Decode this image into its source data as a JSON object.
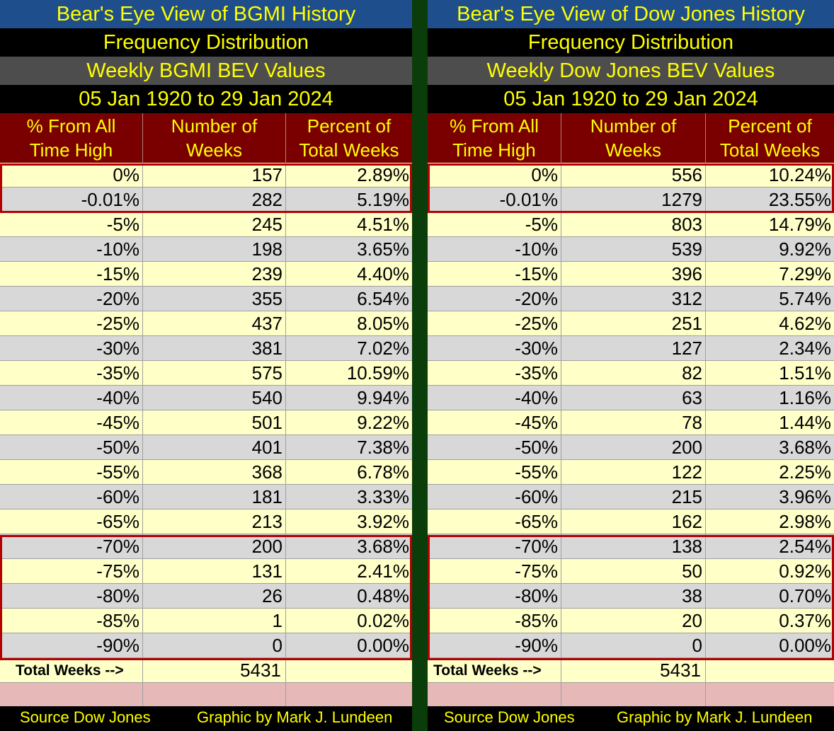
{
  "left": {
    "title": "Bear's Eye View of BGMI History",
    "subtitle": "Frequency Distribution",
    "series_title": "Weekly BGMI BEV Values",
    "date_range": "05 Jan 1920 to 29 Jan 2024",
    "columns": [
      "% From All Time High",
      "Number of Weeks",
      "Percent of Total Weeks"
    ],
    "column_lines": [
      [
        "% From All",
        "Time High"
      ],
      [
        "Number of",
        "Weeks"
      ],
      [
        "Percent of",
        "Total Weeks"
      ]
    ],
    "rows": [
      {
        "pct_from_ath": "0%",
        "weeks": "157",
        "percent": "2.89%"
      },
      {
        "pct_from_ath": "-0.01%",
        "weeks": "282",
        "percent": "5.19%"
      },
      {
        "pct_from_ath": "-5%",
        "weeks": "245",
        "percent": "4.51%"
      },
      {
        "pct_from_ath": "-10%",
        "weeks": "198",
        "percent": "3.65%"
      },
      {
        "pct_from_ath": "-15%",
        "weeks": "239",
        "percent": "4.40%"
      },
      {
        "pct_from_ath": "-20%",
        "weeks": "355",
        "percent": "6.54%"
      },
      {
        "pct_from_ath": "-25%",
        "weeks": "437",
        "percent": "8.05%"
      },
      {
        "pct_from_ath": "-30%",
        "weeks": "381",
        "percent": "7.02%"
      },
      {
        "pct_from_ath": "-35%",
        "weeks": "575",
        "percent": "10.59%"
      },
      {
        "pct_from_ath": "-40%",
        "weeks": "540",
        "percent": "9.94%"
      },
      {
        "pct_from_ath": "-45%",
        "weeks": "501",
        "percent": "9.22%"
      },
      {
        "pct_from_ath": "-50%",
        "weeks": "401",
        "percent": "7.38%"
      },
      {
        "pct_from_ath": "-55%",
        "weeks": "368",
        "percent": "6.78%"
      },
      {
        "pct_from_ath": "-60%",
        "weeks": "181",
        "percent": "3.33%"
      },
      {
        "pct_from_ath": "-65%",
        "weeks": "213",
        "percent": "3.92%"
      },
      {
        "pct_from_ath": "-70%",
        "weeks": "200",
        "percent": "3.68%"
      },
      {
        "pct_from_ath": "-75%",
        "weeks": "131",
        "percent": "2.41%"
      },
      {
        "pct_from_ath": "-80%",
        "weeks": "26",
        "percent": "0.48%"
      },
      {
        "pct_from_ath": "-85%",
        "weeks": "1",
        "percent": "0.02%"
      },
      {
        "pct_from_ath": "-90%",
        "weeks": "0",
        "percent": "0.00%"
      }
    ],
    "total_label": "Total Weeks -->",
    "total_weeks": "5431",
    "source": "Source Dow Jones",
    "credit": "Graphic by Mark J. Lundeen"
  },
  "right": {
    "title": "Bear's Eye View of Dow Jones History",
    "subtitle": "Frequency Distribution",
    "series_title": "Weekly Dow Jones BEV Values",
    "date_range": "05 Jan 1920 to 29 Jan 2024",
    "columns": [
      "% From All Time High",
      "Number of Weeks",
      "Percent of Total Weeks"
    ],
    "column_lines": [
      [
        "% From All",
        "Time High"
      ],
      [
        "Number of",
        "Weeks"
      ],
      [
        "Percent of",
        "Total Weeks"
      ]
    ],
    "rows": [
      {
        "pct_from_ath": "0%",
        "weeks": "556",
        "percent": "10.24%"
      },
      {
        "pct_from_ath": "-0.01%",
        "weeks": "1279",
        "percent": "23.55%"
      },
      {
        "pct_from_ath": "-5%",
        "weeks": "803",
        "percent": "14.79%"
      },
      {
        "pct_from_ath": "-10%",
        "weeks": "539",
        "percent": "9.92%"
      },
      {
        "pct_from_ath": "-15%",
        "weeks": "396",
        "percent": "7.29%"
      },
      {
        "pct_from_ath": "-20%",
        "weeks": "312",
        "percent": "5.74%"
      },
      {
        "pct_from_ath": "-25%",
        "weeks": "251",
        "percent": "4.62%"
      },
      {
        "pct_from_ath": "-30%",
        "weeks": "127",
        "percent": "2.34%"
      },
      {
        "pct_from_ath": "-35%",
        "weeks": "82",
        "percent": "1.51%"
      },
      {
        "pct_from_ath": "-40%",
        "weeks": "63",
        "percent": "1.16%"
      },
      {
        "pct_from_ath": "-45%",
        "weeks": "78",
        "percent": "1.44%"
      },
      {
        "pct_from_ath": "-50%",
        "weeks": "200",
        "percent": "3.68%"
      },
      {
        "pct_from_ath": "-55%",
        "weeks": "122",
        "percent": "2.25%"
      },
      {
        "pct_from_ath": "-60%",
        "weeks": "215",
        "percent": "3.96%"
      },
      {
        "pct_from_ath": "-65%",
        "weeks": "162",
        "percent": "2.98%"
      },
      {
        "pct_from_ath": "-70%",
        "weeks": "138",
        "percent": "2.54%"
      },
      {
        "pct_from_ath": "-75%",
        "weeks": "50",
        "percent": "0.92%"
      },
      {
        "pct_from_ath": "-80%",
        "weeks": "38",
        "percent": "0.70%"
      },
      {
        "pct_from_ath": "-85%",
        "weeks": "20",
        "percent": "0.37%"
      },
      {
        "pct_from_ath": "-90%",
        "weeks": "0",
        "percent": "0.00%"
      }
    ],
    "total_label": "Total Weeks -->",
    "total_weeks": "5431",
    "source": "Source Dow Jones",
    "credit": "Graphic by Mark J. Lundeen"
  },
  "colors": {
    "title_bg": "#1f4e8c",
    "header_text": "#ffff00",
    "column_header_bg": "#7a0000",
    "row_odd": "#ffffc8",
    "row_even": "#d8d8d8",
    "highlight_border": "#b40000",
    "divider": "#0a3d0a"
  }
}
